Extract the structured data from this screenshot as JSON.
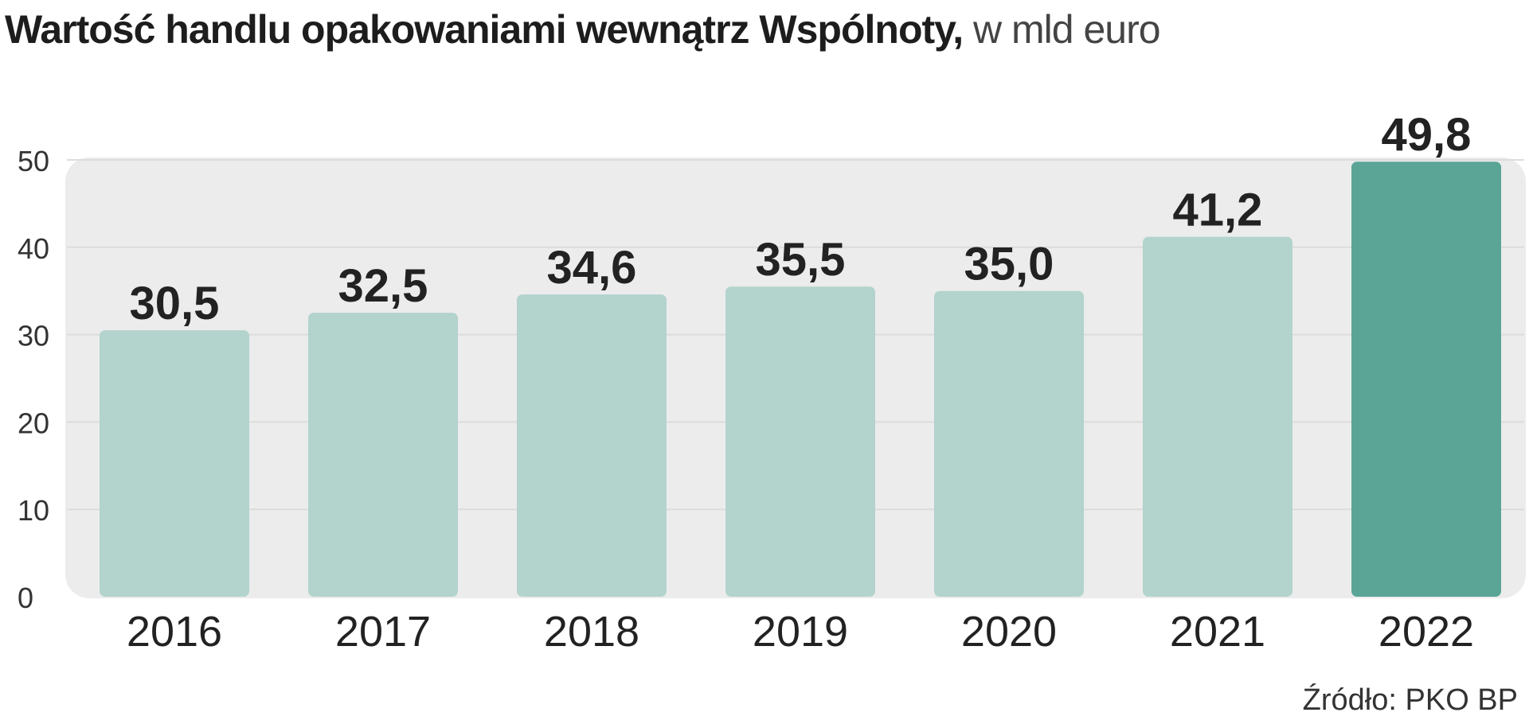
{
  "title": {
    "bold": "Wartość handlu opakowaniami wewnątrz Wspólnoty,",
    "light": "w mld euro"
  },
  "source": "Źródło: PKO BP",
  "colors": {
    "bar": "#b3d3cd",
    "bar_highlight": "#5aa596",
    "panel": "#ececec",
    "grid": "#dcdcdc",
    "text": "#222222"
  },
  "chart_data": {
    "type": "bar",
    "categories": [
      "2016",
      "2017",
      "2018",
      "2019",
      "2020",
      "2021",
      "2022"
    ],
    "values": [
      30.5,
      32.5,
      34.6,
      35.5,
      35.0,
      41.2,
      49.8
    ],
    "value_labels": [
      "30,5",
      "32,5",
      "34,6",
      "35,5",
      "35,0",
      "41,2",
      "49,8"
    ],
    "highlight_index": 6,
    "title": "Wartość handlu opakowaniami wewnątrz Wspólnoty, w mld euro",
    "xlabel": "",
    "ylabel": "",
    "ylim": [
      0,
      50
    ],
    "yticks": [
      0,
      10,
      20,
      30,
      40,
      50
    ],
    "grid": true,
    "legend": "none"
  }
}
